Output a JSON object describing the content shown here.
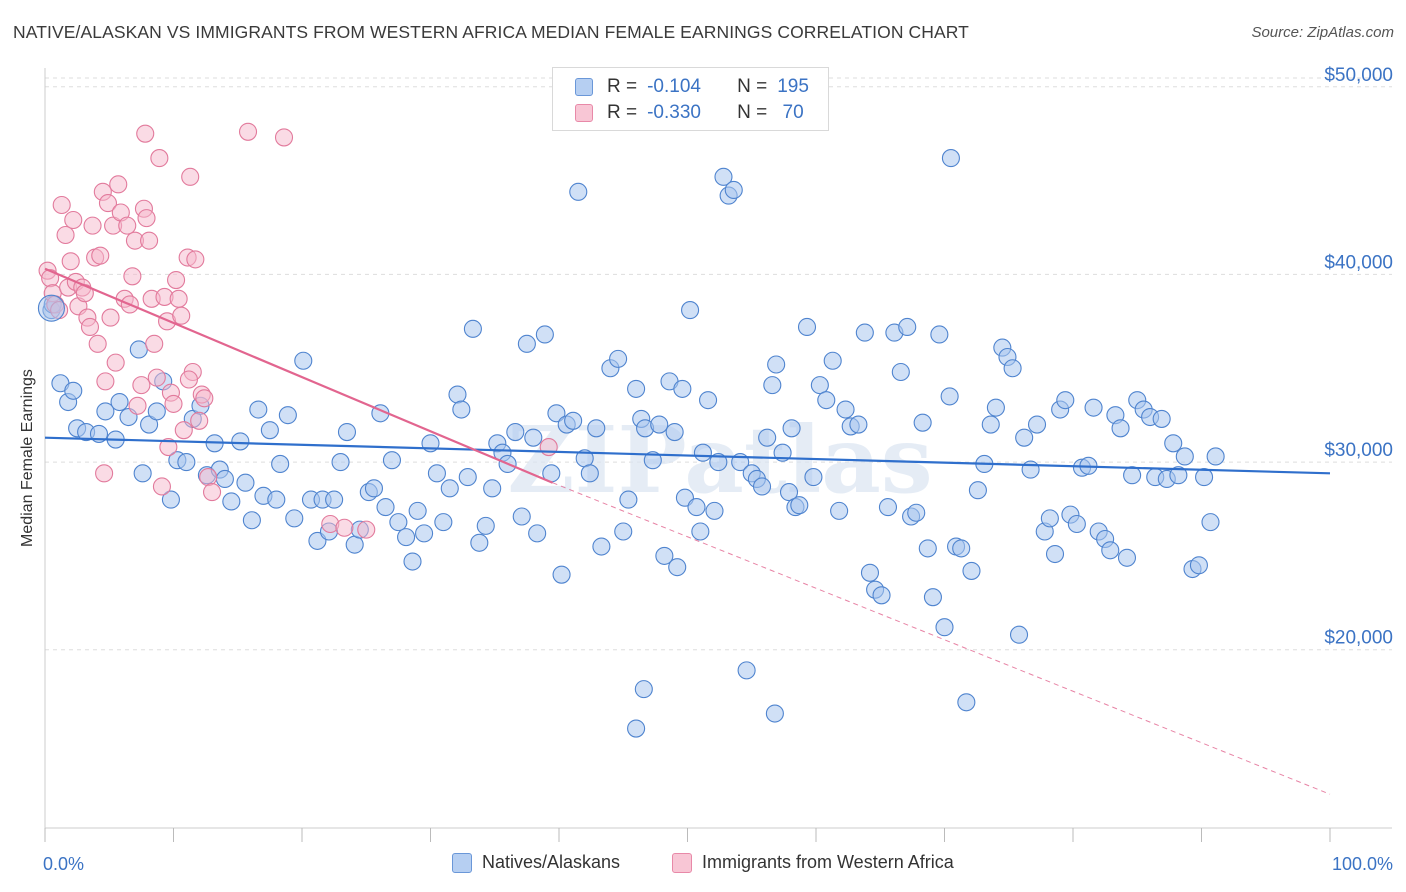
{
  "title": "NATIVE/ALASKAN VS IMMIGRANTS FROM WESTERN AFRICA MEDIAN FEMALE EARNINGS CORRELATION CHART",
  "source": "Source: ZipAtlas.com",
  "watermark": "ZIPatlas",
  "legend": {
    "rows": [
      {
        "r_label": "R =",
        "r_value": "-0.104",
        "n_label": "N =",
        "n_value": "195"
      },
      {
        "r_label": "R =",
        "r_value": "-0.330",
        "n_label": "N =",
        "n_value": " 70"
      }
    ]
  },
  "bottom_legend": [
    "Natives/Alaskans",
    "Immigrants from Western Africa"
  ],
  "colors": {
    "blue_fill": "#a9c6ee",
    "blue_stroke": "#4f84cf",
    "blue_line": "#2f6fcc",
    "pink_fill": "#f5b8cb",
    "pink_stroke": "#e27a9c",
    "pink_line": "#e2658f",
    "axis_label": "#3b73c4",
    "grid": "#dddddd"
  },
  "chart_data": {
    "type": "scatter",
    "title": "NATIVE/ALASKAN VS IMMIGRANTS FROM WESTERN AFRICA MEDIAN FEMALE EARNINGS CORRELATION CHART",
    "xlabel": "",
    "ylabel": "Median Female Earnings",
    "x_tick_labels": [
      "0.0%",
      "100.0%"
    ],
    "y_tick_labels": [
      "$20,000",
      "$30,000",
      "$40,000",
      "$50,000"
    ],
    "y_ticks": [
      20000,
      30000,
      40000,
      50000
    ],
    "xlim": [
      0,
      100
    ],
    "ylim": [
      10500,
      51000
    ],
    "grid": true,
    "legend_position": "top-center",
    "series": [
      {
        "name": "Natives/Alaskans",
        "r": -0.104,
        "n": 195,
        "trend": {
          "x0": 0,
          "y0": 31300,
          "x1": 100,
          "y1": 29400
        },
        "points": [
          [
            0.5,
            38100
          ],
          [
            0.6,
            38400
          ],
          [
            1.2,
            34200
          ],
          [
            1.8,
            33200
          ],
          [
            2.2,
            33800
          ],
          [
            2.5,
            31800
          ],
          [
            3.2,
            31600
          ],
          [
            4.2,
            31500
          ],
          [
            4.7,
            32700
          ],
          [
            5.5,
            31200
          ],
          [
            5.8,
            33200
          ],
          [
            6.5,
            32400
          ],
          [
            7.3,
            36000
          ],
          [
            7.6,
            29400
          ],
          [
            8.1,
            32000
          ],
          [
            8.7,
            32700
          ],
          [
            9.2,
            34300
          ],
          [
            9.8,
            28000
          ],
          [
            10.3,
            30100
          ],
          [
            11.0,
            30000
          ],
          [
            11.5,
            32300
          ],
          [
            12.1,
            33000
          ],
          [
            12.6,
            29300
          ],
          [
            13.2,
            31000
          ],
          [
            13.6,
            29600
          ],
          [
            14.0,
            29100
          ],
          [
            14.5,
            27900
          ],
          [
            15.2,
            31100
          ],
          [
            15.6,
            28900
          ],
          [
            16.1,
            26900
          ],
          [
            16.6,
            32800
          ],
          [
            17.0,
            28200
          ],
          [
            17.5,
            31700
          ],
          [
            18.0,
            28000
          ],
          [
            18.3,
            29900
          ],
          [
            18.9,
            32500
          ],
          [
            19.4,
            27000
          ],
          [
            20.1,
            35400
          ],
          [
            20.7,
            28000
          ],
          [
            21.2,
            25800
          ],
          [
            21.6,
            28000
          ],
          [
            22.1,
            26300
          ],
          [
            22.5,
            28000
          ],
          [
            23.0,
            30000
          ],
          [
            23.5,
            31600
          ],
          [
            24.1,
            25600
          ],
          [
            24.5,
            26400
          ],
          [
            25.2,
            28400
          ],
          [
            25.6,
            28600
          ],
          [
            26.1,
            32600
          ],
          [
            26.5,
            27600
          ],
          [
            27.0,
            30100
          ],
          [
            27.5,
            26800
          ],
          [
            28.1,
            26000
          ],
          [
            28.6,
            24700
          ],
          [
            29.0,
            27400
          ],
          [
            29.5,
            26200
          ],
          [
            30.0,
            31000
          ],
          [
            30.5,
            29400
          ],
          [
            31.0,
            26800
          ],
          [
            31.5,
            28600
          ],
          [
            32.1,
            33600
          ],
          [
            32.4,
            32800
          ],
          [
            32.9,
            29200
          ],
          [
            33.3,
            37100
          ],
          [
            33.8,
            25700
          ],
          [
            34.3,
            26600
          ],
          [
            34.8,
            28600
          ],
          [
            35.2,
            31000
          ],
          [
            35.6,
            30500
          ],
          [
            36.0,
            29900
          ],
          [
            36.6,
            31600
          ],
          [
            37.1,
            27100
          ],
          [
            37.5,
            36300
          ],
          [
            38.0,
            31300
          ],
          [
            38.3,
            26200
          ],
          [
            38.9,
            36800
          ],
          [
            39.4,
            29400
          ],
          [
            39.8,
            32600
          ],
          [
            40.2,
            24000
          ],
          [
            40.6,
            32000
          ],
          [
            41.1,
            32200
          ],
          [
            41.5,
            44400
          ],
          [
            42.0,
            30200
          ],
          [
            42.4,
            29400
          ],
          [
            42.9,
            31800
          ],
          [
            43.3,
            25500
          ],
          [
            44.0,
            35000
          ],
          [
            44.6,
            35500
          ],
          [
            45.0,
            26300
          ],
          [
            45.4,
            28000
          ],
          [
            46.0,
            33900
          ],
          [
            46.4,
            32300
          ],
          [
            46.7,
            31800
          ],
          [
            47.3,
            30100
          ],
          [
            47.8,
            32000
          ],
          [
            48.2,
            25000
          ],
          [
            48.6,
            34300
          ],
          [
            49.2,
            24400
          ],
          [
            49.6,
            33900
          ],
          [
            49.8,
            28100
          ],
          [
            50.2,
            38100
          ],
          [
            50.7,
            27600
          ],
          [
            51.0,
            26300
          ],
          [
            51.2,
            30500
          ],
          [
            51.6,
            33300
          ],
          [
            52.1,
            27400
          ],
          [
            52.4,
            30000
          ],
          [
            52.8,
            45200
          ],
          [
            53.2,
            44200
          ],
          [
            53.6,
            44500
          ],
          [
            54.1,
            30000
          ],
          [
            54.6,
            18900
          ],
          [
            55.0,
            29400
          ],
          [
            55.4,
            29100
          ],
          [
            55.8,
            28700
          ],
          [
            56.2,
            31300
          ],
          [
            56.6,
            34100
          ],
          [
            56.9,
            35200
          ],
          [
            57.4,
            30500
          ],
          [
            57.9,
            28400
          ],
          [
            58.1,
            31800
          ],
          [
            58.4,
            27600
          ],
          [
            58.7,
            27700
          ],
          [
            59.3,
            37200
          ],
          [
            59.8,
            29200
          ],
          [
            60.3,
            34100
          ],
          [
            60.8,
            33300
          ],
          [
            61.3,
            35400
          ],
          [
            61.8,
            27400
          ],
          [
            62.3,
            32800
          ],
          [
            62.7,
            31900
          ],
          [
            63.3,
            32000
          ],
          [
            63.8,
            36900
          ],
          [
            64.2,
            24100
          ],
          [
            64.6,
            23200
          ],
          [
            65.1,
            22900
          ],
          [
            65.6,
            27600
          ],
          [
            66.1,
            36900
          ],
          [
            66.6,
            34800
          ],
          [
            67.1,
            37200
          ],
          [
            67.4,
            27100
          ],
          [
            67.8,
            27300
          ],
          [
            68.3,
            32100
          ],
          [
            68.7,
            25400
          ],
          [
            69.1,
            22800
          ],
          [
            69.6,
            36800
          ],
          [
            70.0,
            21200
          ],
          [
            70.4,
            33500
          ],
          [
            70.9,
            25500
          ],
          [
            71.3,
            25400
          ],
          [
            71.7,
            17200
          ],
          [
            72.1,
            24200
          ],
          [
            72.6,
            28500
          ],
          [
            73.1,
            29900
          ],
          [
            73.6,
            32000
          ],
          [
            74.0,
            32900
          ],
          [
            74.5,
            36100
          ],
          [
            74.9,
            35600
          ],
          [
            75.3,
            35000
          ],
          [
            75.8,
            20800
          ],
          [
            76.2,
            31300
          ],
          [
            76.7,
            29600
          ],
          [
            77.2,
            32000
          ],
          [
            77.8,
            26300
          ],
          [
            78.2,
            27000
          ],
          [
            78.6,
            25100
          ],
          [
            79.0,
            32800
          ],
          [
            79.4,
            33300
          ],
          [
            79.8,
            27200
          ],
          [
            80.3,
            26700
          ],
          [
            80.7,
            29700
          ],
          [
            81.2,
            29800
          ],
          [
            81.6,
            32900
          ],
          [
            82.0,
            26300
          ],
          [
            82.5,
            25900
          ],
          [
            82.9,
            25300
          ],
          [
            83.3,
            32500
          ],
          [
            83.7,
            31800
          ],
          [
            84.2,
            24900
          ],
          [
            84.6,
            29300
          ],
          [
            85.0,
            33300
          ],
          [
            85.5,
            32800
          ],
          [
            86.0,
            32400
          ],
          [
            86.4,
            29200
          ],
          [
            86.9,
            32300
          ],
          [
            87.3,
            29100
          ],
          [
            87.8,
            31000
          ],
          [
            88.2,
            29300
          ],
          [
            88.7,
            30300
          ],
          [
            89.3,
            24300
          ],
          [
            89.8,
            24500
          ],
          [
            90.2,
            29200
          ],
          [
            90.7,
            26800
          ],
          [
            91.1,
            30300
          ],
          [
            46.0,
            15800
          ],
          [
            46.6,
            17900
          ],
          [
            56.8,
            16600
          ],
          [
            70.5,
            46200
          ],
          [
            49.0,
            31600
          ]
        ]
      },
      {
        "name": "Immigrants from Western Africa",
        "r": -0.33,
        "n": 70,
        "trend": {
          "x0": 0,
          "y0": 40300,
          "x1": 39.5,
          "y1": 28900,
          "dash_x1": 100,
          "dash_y1": 12300
        },
        "points": [
          [
            0.2,
            40200
          ],
          [
            0.4,
            39800
          ],
          [
            0.6,
            39000
          ],
          [
            0.8,
            38400
          ],
          [
            1.1,
            38100
          ],
          [
            1.3,
            43700
          ],
          [
            1.6,
            42100
          ],
          [
            1.8,
            39300
          ],
          [
            2.0,
            40700
          ],
          [
            2.2,
            42900
          ],
          [
            2.4,
            39600
          ],
          [
            2.6,
            38300
          ],
          [
            2.9,
            39300
          ],
          [
            3.1,
            39000
          ],
          [
            3.3,
            37700
          ],
          [
            3.5,
            37200
          ],
          [
            3.7,
            42600
          ],
          [
            3.9,
            40900
          ],
          [
            4.1,
            36300
          ],
          [
            4.3,
            41000
          ],
          [
            4.5,
            44400
          ],
          [
            4.7,
            34300
          ],
          [
            4.9,
            43800
          ],
          [
            5.1,
            37700
          ],
          [
            5.3,
            42600
          ],
          [
            5.5,
            35300
          ],
          [
            5.7,
            44800
          ],
          [
            5.9,
            43300
          ],
          [
            6.2,
            38700
          ],
          [
            6.4,
            42600
          ],
          [
            6.6,
            38400
          ],
          [
            6.8,
            39900
          ],
          [
            7.0,
            41800
          ],
          [
            7.2,
            33000
          ],
          [
            7.5,
            34100
          ],
          [
            7.7,
            43500
          ],
          [
            7.9,
            43000
          ],
          [
            8.1,
            41800
          ],
          [
            8.3,
            38700
          ],
          [
            8.5,
            36300
          ],
          [
            8.7,
            34500
          ],
          [
            8.9,
            46200
          ],
          [
            9.1,
            28700
          ],
          [
            9.3,
            38800
          ],
          [
            9.5,
            37500
          ],
          [
            9.8,
            33700
          ],
          [
            10.0,
            33100
          ],
          [
            10.2,
            39700
          ],
          [
            10.4,
            38700
          ],
          [
            10.6,
            37800
          ],
          [
            10.8,
            31700
          ],
          [
            11.1,
            40900
          ],
          [
            11.3,
            45200
          ],
          [
            11.5,
            34800
          ],
          [
            11.7,
            40800
          ],
          [
            12.0,
            32200
          ],
          [
            12.2,
            33600
          ],
          [
            12.4,
            33400
          ],
          [
            12.7,
            29200
          ],
          [
            13.0,
            28400
          ],
          [
            4.6,
            29400
          ],
          [
            7.8,
            47500
          ],
          [
            15.8,
            47600
          ],
          [
            18.6,
            47300
          ],
          [
            9.6,
            30800
          ],
          [
            11.2,
            34400
          ],
          [
            22.2,
            26700
          ],
          [
            23.3,
            26500
          ],
          [
            25.0,
            26400
          ],
          [
            39.2,
            30800
          ]
        ]
      }
    ]
  }
}
